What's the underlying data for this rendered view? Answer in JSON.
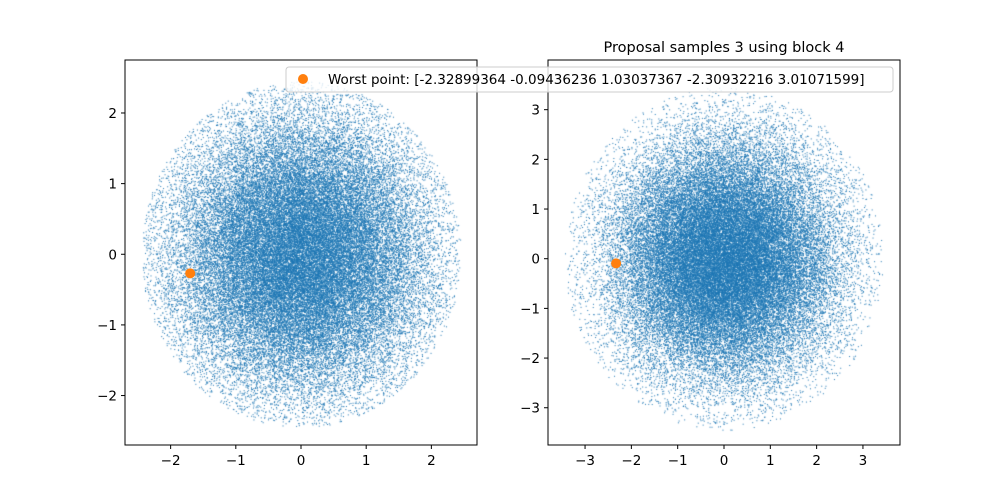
{
  "chart_data": [
    {
      "type": "scatter",
      "title": "",
      "xlabel": "",
      "ylabel": "",
      "xlim": [
        -2.7,
        2.7
      ],
      "ylim": [
        -2.7,
        2.75
      ],
      "xticks": [
        -2,
        -1,
        0,
        1,
        2
      ],
      "yticks": [
        -2,
        -1,
        0,
        1,
        2
      ],
      "xtick_labels": [
        "−2",
        "−1",
        "0",
        "1",
        "2"
      ],
      "ytick_labels": [
        "−2",
        "−1",
        "0",
        "1",
        "2"
      ],
      "grid": false,
      "series": [
        {
          "kind": "samples",
          "color": "#1f77b4",
          "distribution": "standard normal, radially truncated",
          "sample_count": 50000,
          "truncation_radius": 2.45
        },
        {
          "kind": "worst-point",
          "color": "#ff7f0e",
          "points": [
            [
              -1.7,
              -0.27
            ]
          ]
        }
      ]
    },
    {
      "type": "scatter",
      "title": "Proposal samples 3 using block 4",
      "xlabel": "",
      "ylabel": "",
      "xlim": [
        -3.8,
        3.8
      ],
      "ylim": [
        -3.75,
        4.0
      ],
      "xticks": [
        -3,
        -2,
        -1,
        0,
        1,
        2,
        3
      ],
      "yticks": [
        -3,
        -2,
        -1,
        0,
        1,
        2,
        3
      ],
      "xtick_labels": [
        "−3",
        "−2",
        "−1",
        "0",
        "1",
        "2",
        "3"
      ],
      "ytick_labels": [
        "−3",
        "−2",
        "−1",
        "0",
        "1",
        "2",
        "3"
      ],
      "grid": false,
      "series": [
        {
          "kind": "samples",
          "color": "#1f77b4",
          "distribution": "normal (sd ≈ 1.2), radially truncated",
          "sample_count": 50000,
          "truncation_radius": 3.45
        },
        {
          "kind": "worst-point",
          "name": "Worst point: [-2.32899364 -0.09436236  1.03037367 -2.30932216  3.01071599]",
          "color": "#ff7f0e",
          "points": [
            [
              -2.33,
              -0.094
            ]
          ]
        }
      ],
      "legend": {
        "placement": "upper-right"
      }
    }
  ]
}
